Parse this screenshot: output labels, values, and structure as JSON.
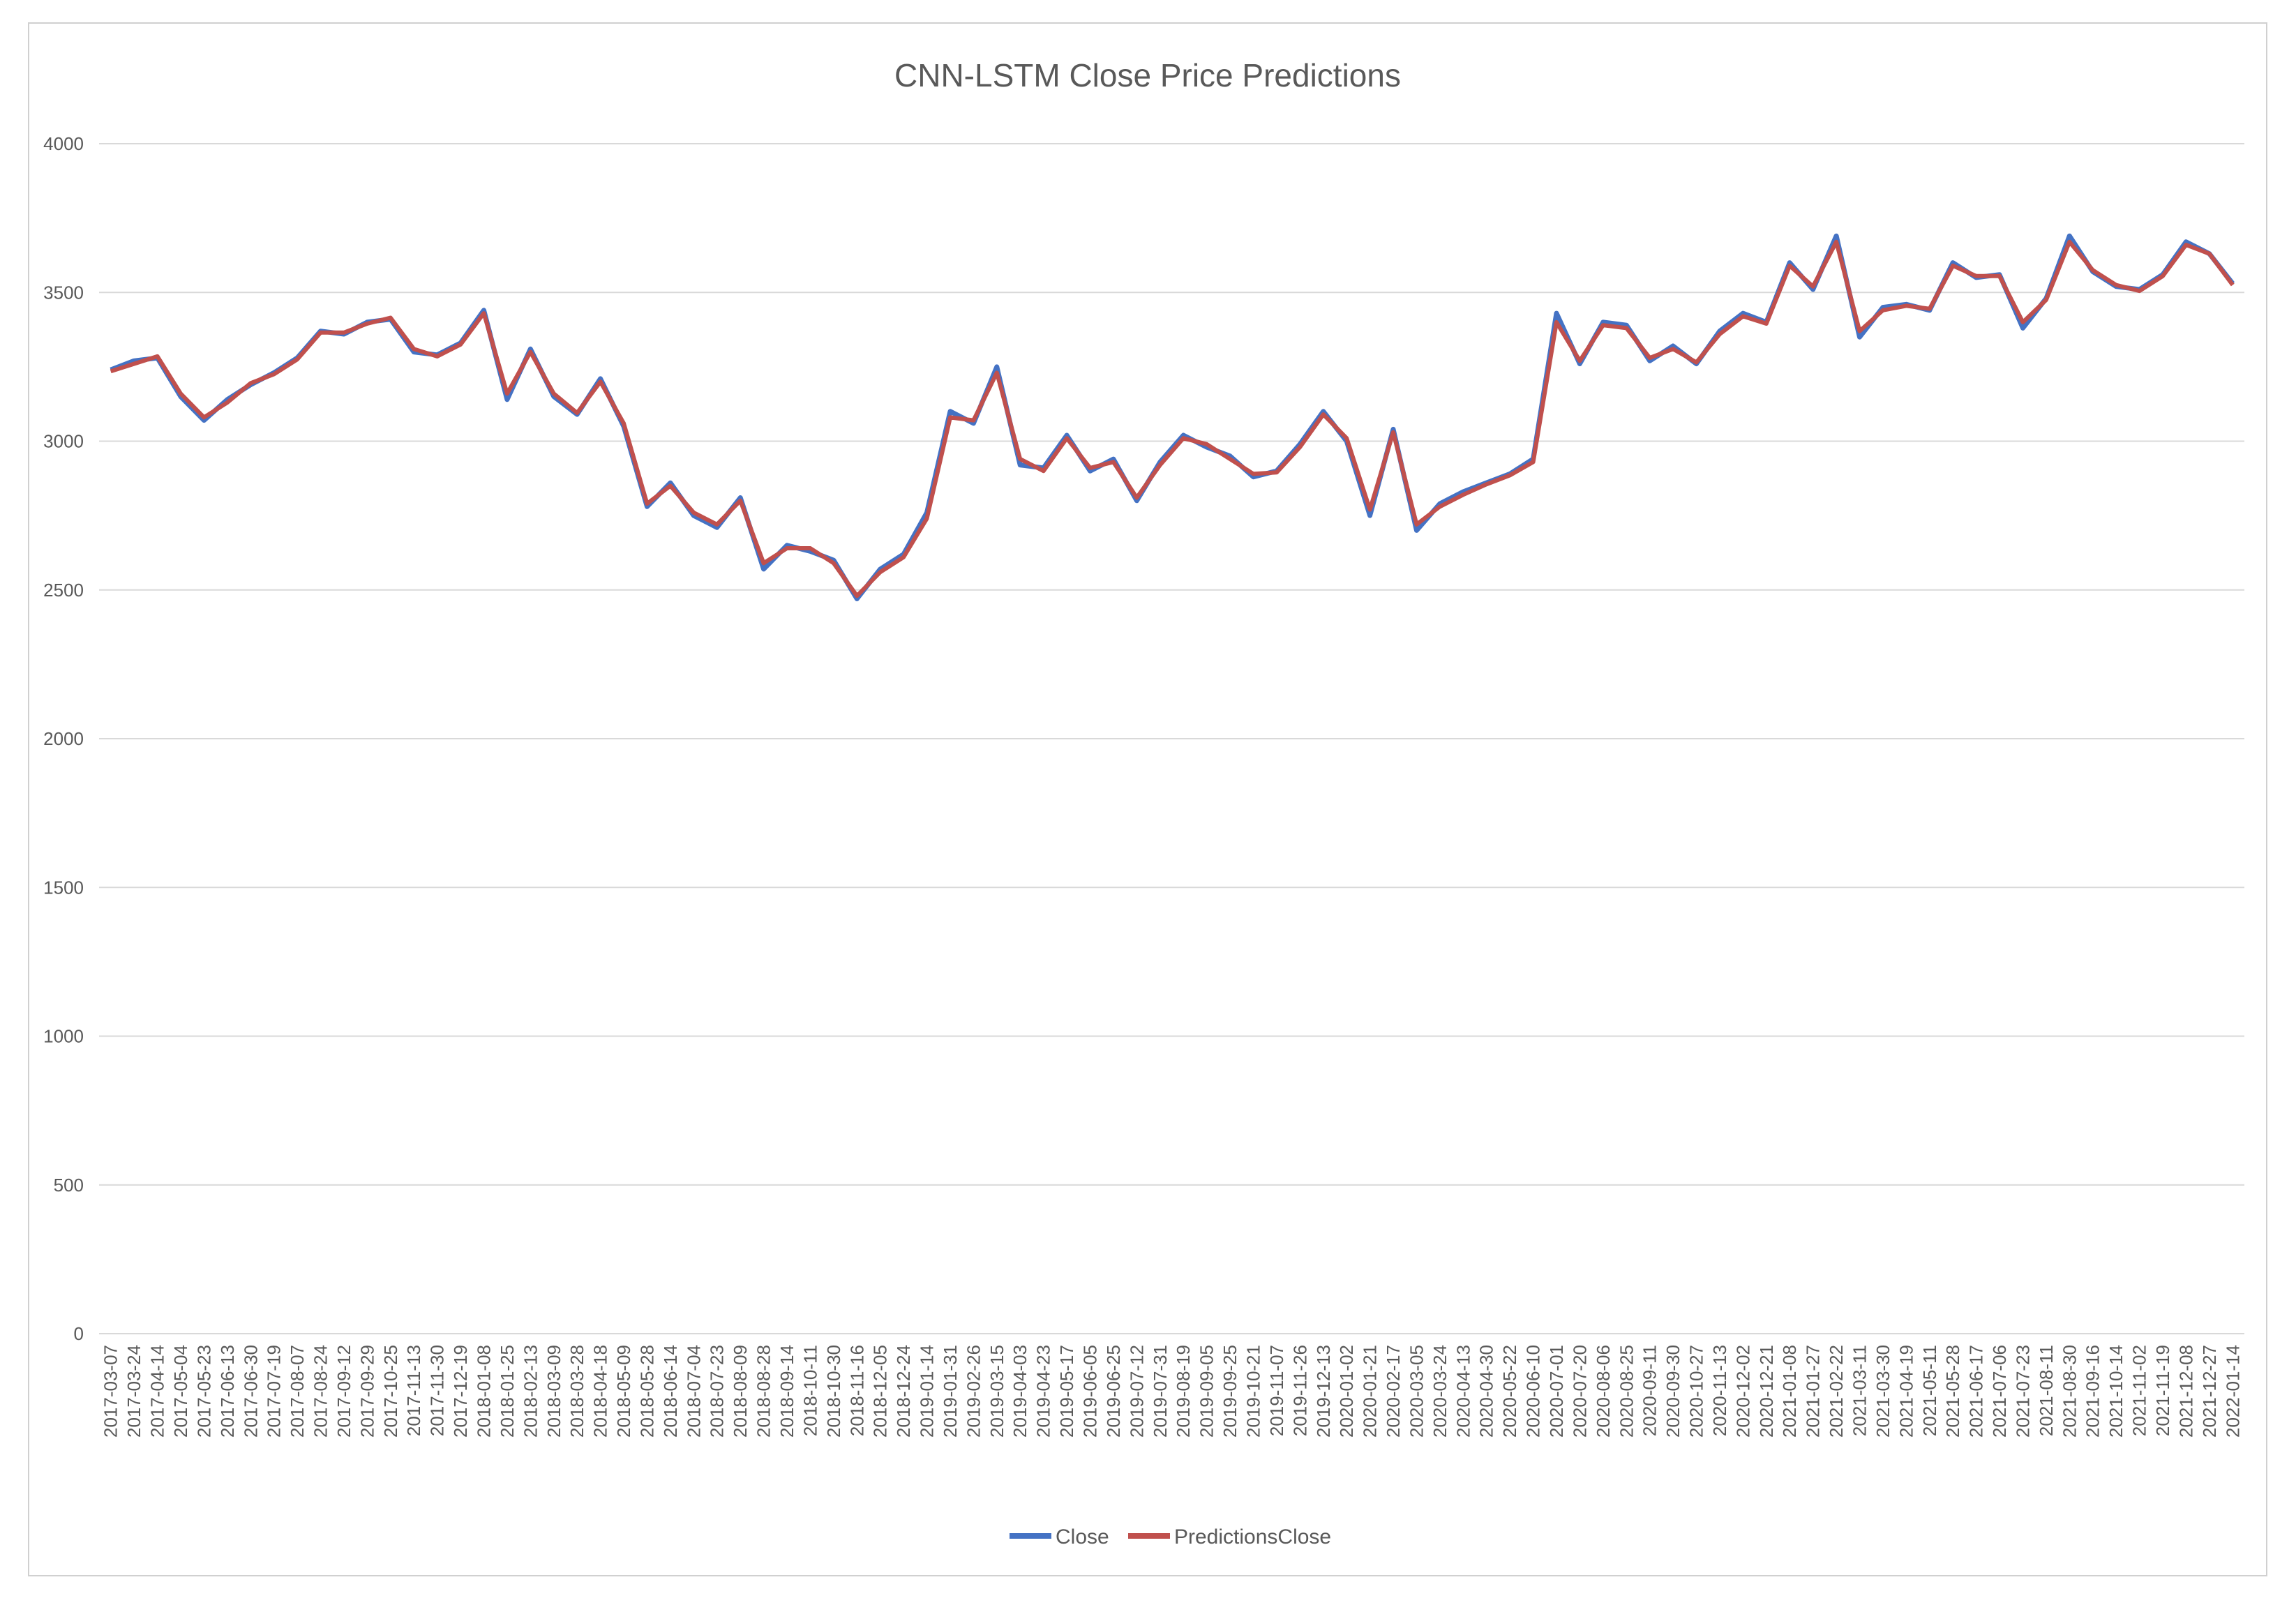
{
  "chart_data": {
    "type": "line",
    "title": "CNN-LSTM Close Price Predictions",
    "xlabel": "",
    "ylabel": "",
    "ylim": [
      0,
      4000
    ],
    "yticks": [
      0,
      500,
      1000,
      1500,
      2000,
      2500,
      3000,
      3500,
      4000
    ],
    "grid": true,
    "legend_position": "bottom",
    "x_tick_labels": [
      "2017-03-07",
      "2017-03-24",
      "2017-04-14",
      "2017-05-04",
      "2017-05-23",
      "2017-06-13",
      "2017-06-30",
      "2017-07-19",
      "2017-08-07",
      "2017-08-24",
      "2017-09-12",
      "2017-09-29",
      "2017-10-25",
      "2017-11-13",
      "2017-11-30",
      "2017-12-19",
      "2018-01-08",
      "2018-01-25",
      "2018-02-13",
      "2018-03-09",
      "2018-03-28",
      "2018-04-18",
      "2018-05-09",
      "2018-05-28",
      "2018-06-14",
      "2018-07-04",
      "2018-07-23",
      "2018-08-09",
      "2018-08-28",
      "2018-09-14",
      "2018-10-11",
      "2018-10-30",
      "2018-11-16",
      "2018-12-05",
      "2018-12-24",
      "2019-01-14",
      "2019-01-31",
      "2019-02-26",
      "2019-03-15",
      "2019-04-03",
      "2019-04-23",
      "2019-05-17",
      "2019-06-05",
      "2019-06-25",
      "2019-07-12",
      "2019-07-31",
      "2019-08-19",
      "2019-09-05",
      "2019-09-25",
      "2019-10-21",
      "2019-11-07",
      "2019-11-26",
      "2019-12-13",
      "2020-01-02",
      "2020-01-21",
      "2020-02-17",
      "2020-03-05",
      "2020-03-24",
      "2020-04-13",
      "2020-04-30",
      "2020-05-22",
      "2020-06-10",
      "2020-07-01",
      "2020-07-20",
      "2020-08-06",
      "2020-08-25",
      "2020-09-11",
      "2020-09-30",
      "2020-10-27",
      "2020-11-13",
      "2020-12-02",
      "2020-12-21",
      "2021-01-08",
      "2021-01-27",
      "2021-02-22",
      "2021-03-11",
      "2021-03-30",
      "2021-04-19",
      "2021-05-11",
      "2021-05-28",
      "2021-06-17",
      "2021-07-06",
      "2021-07-23",
      "2021-08-11",
      "2021-08-30",
      "2021-09-16",
      "2021-10-14",
      "2021-11-02",
      "2021-11-19",
      "2021-12-08",
      "2021-12-27",
      "2022-01-14"
    ],
    "series": [
      {
        "name": "Close",
        "color": "#4472c4",
        "values": [
          3240,
          3270,
          3280,
          3150,
          3070,
          3140,
          3190,
          3230,
          3280,
          3370,
          3360,
          3400,
          3410,
          3300,
          3290,
          3330,
          3440,
          3140,
          3310,
          3150,
          3090,
          3210,
          3050,
          2780,
          2860,
          2750,
          2710,
          2810,
          2570,
          2650,
          2630,
          2600,
          2470,
          2570,
          2620,
          2760,
          3100,
          3060,
          3250,
          2920,
          2910,
          3020,
          2900,
          2940,
          2800,
          2930,
          3020,
          2980,
          2950,
          2880,
          2900,
          2990,
          3100,
          3000,
          2750,
          3040,
          2700,
          2790,
          2830,
          2860,
          2890,
          2940,
          3430,
          3260,
          3400,
          3390,
          3270,
          3320,
          3260,
          3370,
          3430,
          3400,
          3600,
          3510,
          3690,
          3350,
          3450,
          3460,
          3440,
          3600,
          3550,
          3560,
          3380,
          3480,
          3690,
          3570,
          3520,
          3510,
          3560,
          3670,
          3630,
          3530
        ]
      },
      {
        "name": "PredictionsClose",
        "color": "#c0504d",
        "values": [
          3235,
          3260,
          3285,
          3160,
          3080,
          3130,
          3195,
          3225,
          3275,
          3365,
          3365,
          3395,
          3415,
          3310,
          3285,
          3325,
          3430,
          3160,
          3300,
          3160,
          3095,
          3200,
          3060,
          2790,
          2850,
          2760,
          2720,
          2800,
          2590,
          2640,
          2640,
          2590,
          2480,
          2560,
          2610,
          2740,
          3080,
          3070,
          3230,
          2940,
          2900,
          3010,
          2910,
          2930,
          2810,
          2920,
          3010,
          2990,
          2940,
          2890,
          2895,
          2980,
          3090,
          3010,
          2770,
          3030,
          2720,
          2780,
          2820,
          2855,
          2885,
          2930,
          3400,
          3270,
          3390,
          3380,
          3280,
          3310,
          3265,
          3360,
          3420,
          3395,
          3590,
          3520,
          3670,
          3370,
          3440,
          3455,
          3445,
          3590,
          3555,
          3555,
          3400,
          3475,
          3670,
          3575,
          3525,
          3505,
          3555,
          3660,
          3630,
          3525
        ]
      }
    ]
  }
}
